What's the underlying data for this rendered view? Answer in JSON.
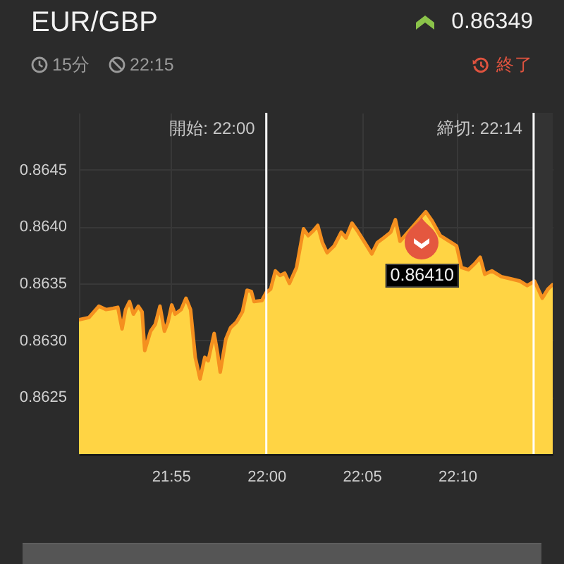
{
  "chart_data": {
    "type": "area",
    "title": "EUR/GBP",
    "annotations": [
      "0.86349",
      "15分",
      "22:15",
      "終了",
      {
        "text": "0.86410",
        "x": 22.136,
        "y": 0.8641
      }
    ],
    "x": [
      21.8365,
      21.8452,
      21.8538,
      21.86,
      21.8661,
      21.8704,
      21.8741,
      21.8772,
      21.8806,
      21.884,
      21.8883,
      21.8916,
      21.8939,
      21.899,
      21.9031,
      21.9072,
      21.9111,
      21.9142,
      21.9175,
      21.9204,
      21.9257,
      21.9299,
      21.9339,
      21.938,
      21.9422,
      21.9463,
      21.9493,
      21.9545,
      21.9574,
      21.9598,
      21.9647,
      21.9688,
      21.974,
      21.9792,
      21.9832,
      21.9869,
      21.9894,
      21.9962,
      21.9999,
      22.0038,
      22.0079,
      22.012,
      22.0161,
      22.0202,
      22.0264,
      22.0325,
      22.0366,
      22.0408,
      22.0449,
      22.0489,
      22.0531,
      22.0593,
      22.0654,
      22.0695,
      22.0748,
      22.0797,
      22.0859,
      22.0921,
      22.097,
      22.1024,
      22.1086,
      22.1127,
      22.1167,
      22.1392,
      22.1447,
      22.1518,
      22.1599,
      22.1661,
      22.1703,
      22.1764,
      22.1826,
      22.1867,
      22.1907,
      22.1969,
      22.2051,
      22.2134,
      22.2215,
      22.2277,
      22.2341,
      22.2409,
      22.2458,
      22.25
    ],
    "series": [
      {
        "color": "#ffd444",
        "values": [
          0.86318,
          0.8632,
          0.8633,
          0.86327,
          0.86328,
          0.86329,
          0.8631,
          0.86327,
          0.86334,
          0.86323,
          0.8633,
          0.86325,
          0.86291,
          0.86308,
          0.86314,
          0.8633,
          0.86308,
          0.86316,
          0.86331,
          0.86323,
          0.86327,
          0.86337,
          0.86327,
          0.86285,
          0.86266,
          0.86285,
          0.86282,
          0.86306,
          0.86289,
          0.86272,
          0.86301,
          0.86311,
          0.86316,
          0.86325,
          0.86344,
          0.86343,
          0.86334,
          0.86335,
          0.86342,
          0.86345,
          0.86361,
          0.86357,
          0.86359,
          0.8635,
          0.86364,
          0.86398,
          0.86392,
          0.86396,
          0.86401,
          0.86386,
          0.86377,
          0.86383,
          0.86395,
          0.8639,
          0.86403,
          0.86396,
          0.86386,
          0.86376,
          0.86386,
          0.8639,
          0.86395,
          0.86406,
          0.86387,
          0.86413,
          0.86405,
          0.86392,
          0.86387,
          0.86383,
          0.86364,
          0.86362,
          0.86368,
          0.86373,
          0.86358,
          0.86361,
          0.86356,
          0.86354,
          0.86352,
          0.86348,
          0.86352,
          0.86337,
          0.86345,
          0.86349
        ]
      }
    ],
    "xlim": [
      21.8365,
      22.25
    ],
    "ylim": [
      0.862,
      0.865
    ],
    "xticks": [
      {
        "value": 21.91667,
        "label": "21:55"
      },
      {
        "value": 22,
        "label": "22:00"
      },
      {
        "value": 22.08333,
        "label": "22:05"
      },
      {
        "value": 22.16667,
        "label": "22:10"
      }
    ],
    "yticks": [
      {
        "value": 0.8625,
        "label": "0.8625"
      },
      {
        "value": 0.863,
        "label": "0.8630"
      },
      {
        "value": 0.8635,
        "label": "0.8635"
      },
      {
        "value": 0.864,
        "label": "0.8640"
      },
      {
        "value": 0.8645,
        "label": "0.8645"
      }
    ],
    "grid": true,
    "ref_lines": [
      {
        "axis": "x",
        "value": 22,
        "label": "開始: 22:00",
        "color": "#ffffff"
      },
      {
        "axis": "x",
        "value": 22.23333,
        "label": "締切: 22:14",
        "color": "#ffffff"
      }
    ],
    "bands": [
      {
        "axis": "x",
        "from": 22.23333,
        "to": 22.25,
        "color": "#333333"
      }
    ]
  }
}
